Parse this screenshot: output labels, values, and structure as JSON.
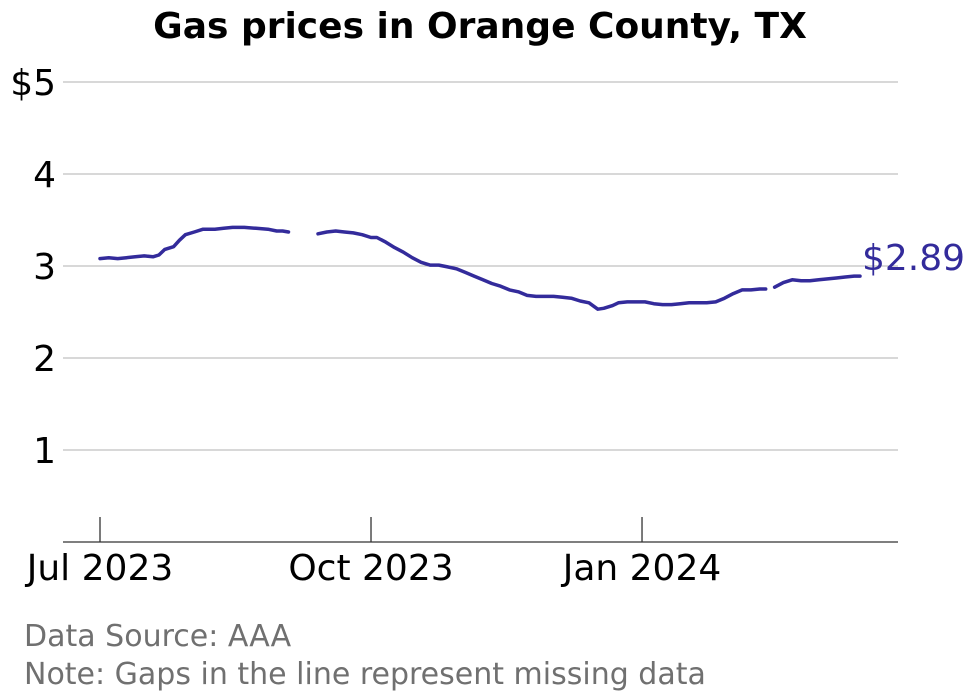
{
  "chart_data": {
    "type": "line",
    "title": "Gas prices in Orange County, TX",
    "y_tick_labels": [
      "1",
      "2",
      "3",
      "4",
      "$5"
    ],
    "y_tick_values": [
      1,
      2,
      3,
      4,
      5
    ],
    "ylim": [
      0,
      5
    ],
    "x_tick_labels": [
      "Jul 2023",
      "Oct 2023",
      "Jan 2024"
    ],
    "x_tick_dates": [
      "2023-07-01",
      "2023-10-01",
      "2024-01-01"
    ],
    "xlim": [
      "2023-06-20",
      "2024-03-24"
    ],
    "grid": "horizontal",
    "line_color": "#332b9b",
    "end_label": "$2.89",
    "series": [
      {
        "segments": [
          [
            [
              "2023-07-01",
              3.08
            ],
            [
              "2023-07-04",
              3.09
            ],
            [
              "2023-07-07",
              3.08
            ],
            [
              "2023-07-10",
              3.09
            ],
            [
              "2023-07-13",
              3.1
            ],
            [
              "2023-07-16",
              3.11
            ],
            [
              "2023-07-19",
              3.1
            ],
            [
              "2023-07-21",
              3.12
            ],
            [
              "2023-07-23",
              3.18
            ],
            [
              "2023-07-26",
              3.21
            ],
            [
              "2023-07-28",
              3.28
            ],
            [
              "2023-07-30",
              3.34
            ],
            [
              "2023-08-02",
              3.37
            ],
            [
              "2023-08-05",
              3.4
            ],
            [
              "2023-08-09",
              3.4
            ],
            [
              "2023-08-12",
              3.41
            ],
            [
              "2023-08-15",
              3.42
            ],
            [
              "2023-08-19",
              3.42
            ],
            [
              "2023-08-23",
              3.41
            ],
            [
              "2023-08-27",
              3.4
            ],
            [
              "2023-08-30",
              3.38
            ],
            [
              "2023-09-01",
              3.38
            ],
            [
              "2023-09-03",
              3.37
            ]
          ],
          [
            [
              "2023-09-13",
              3.35
            ],
            [
              "2023-09-16",
              3.37
            ],
            [
              "2023-09-19",
              3.38
            ],
            [
              "2023-09-22",
              3.37
            ],
            [
              "2023-09-25",
              3.36
            ],
            [
              "2023-09-28",
              3.34
            ],
            [
              "2023-10-01",
              3.31
            ],
            [
              "2023-10-03",
              3.31
            ],
            [
              "2023-10-06",
              3.26
            ],
            [
              "2023-10-09",
              3.2
            ],
            [
              "2023-10-12",
              3.15
            ],
            [
              "2023-10-15",
              3.09
            ],
            [
              "2023-10-18",
              3.04
            ],
            [
              "2023-10-21",
              3.01
            ],
            [
              "2023-10-24",
              3.01
            ],
            [
              "2023-10-27",
              2.99
            ],
            [
              "2023-10-30",
              2.97
            ],
            [
              "2023-11-02",
              2.93
            ],
            [
              "2023-11-05",
              2.89
            ],
            [
              "2023-11-08",
              2.85
            ],
            [
              "2023-11-11",
              2.81
            ],
            [
              "2023-11-14",
              2.78
            ],
            [
              "2023-11-17",
              2.74
            ],
            [
              "2023-11-20",
              2.72
            ],
            [
              "2023-11-23",
              2.68
            ],
            [
              "2023-11-26",
              2.67
            ],
            [
              "2023-11-29",
              2.67
            ],
            [
              "2023-12-02",
              2.67
            ],
            [
              "2023-12-05",
              2.66
            ],
            [
              "2023-12-08",
              2.65
            ],
            [
              "2023-12-11",
              2.62
            ],
            [
              "2023-12-14",
              2.6
            ],
            [
              "2023-12-17",
              2.53
            ],
            [
              "2023-12-19",
              2.54
            ],
            [
              "2023-12-22",
              2.57
            ],
            [
              "2023-12-24",
              2.6
            ],
            [
              "2023-12-27",
              2.61
            ],
            [
              "2023-12-30",
              2.61
            ],
            [
              "2024-01-02",
              2.61
            ],
            [
              "2024-01-05",
              2.59
            ],
            [
              "2024-01-08",
              2.58
            ],
            [
              "2024-01-11",
              2.58
            ],
            [
              "2024-01-14",
              2.59
            ],
            [
              "2024-01-17",
              2.6
            ],
            [
              "2024-01-20",
              2.6
            ],
            [
              "2024-01-23",
              2.6
            ],
            [
              "2024-01-26",
              2.61
            ],
            [
              "2024-01-29",
              2.65
            ],
            [
              "2024-02-01",
              2.7
            ],
            [
              "2024-02-04",
              2.74
            ],
            [
              "2024-02-07",
              2.74
            ],
            [
              "2024-02-10",
              2.75
            ],
            [
              "2024-02-12",
              2.75
            ]
          ],
          [
            [
              "2024-02-15",
              2.77
            ],
            [
              "2024-02-18",
              2.82
            ],
            [
              "2024-02-21",
              2.85
            ],
            [
              "2024-02-24",
              2.84
            ],
            [
              "2024-02-27",
              2.84
            ],
            [
              "2024-03-01",
              2.85
            ],
            [
              "2024-03-04",
              2.86
            ],
            [
              "2024-03-07",
              2.87
            ],
            [
              "2024-03-10",
              2.88
            ],
            [
              "2024-03-13",
              2.89
            ],
            [
              "2024-03-15",
              2.89
            ]
          ]
        ]
      }
    ]
  },
  "notes": {
    "source": "Data Source: AAA",
    "note": "Note: Gaps in the line represent missing data"
  }
}
